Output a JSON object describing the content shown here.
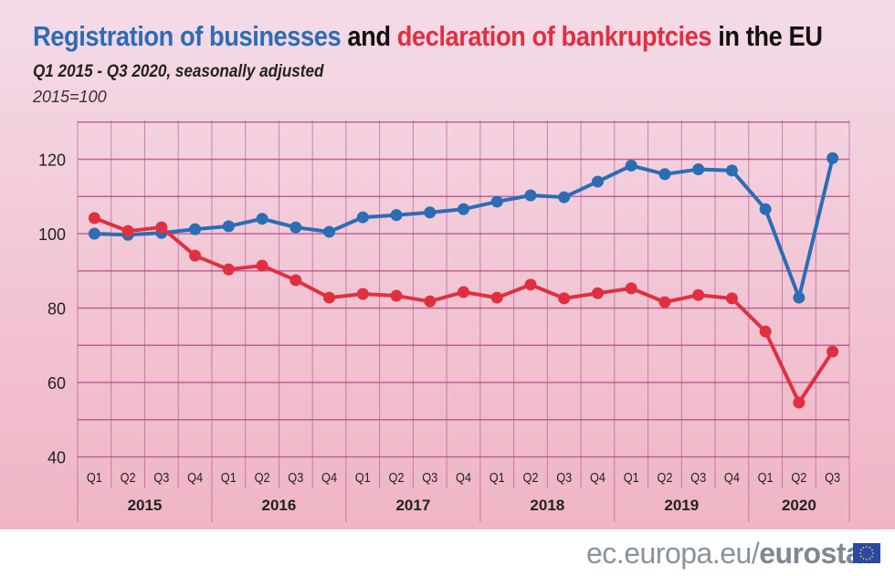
{
  "header": {
    "title_part1": "Registration of businesses",
    "title_part2": " and ",
    "title_part3": "declaration of bankruptcies",
    "title_part4": " in the EU",
    "subtitle": "Q1 2015  - Q3 2020, seasonally adjusted",
    "base": "2015=100"
  },
  "footer": {
    "site": "ec.europa.eu/",
    "brand": "eurostat",
    "logo": "eu-flag"
  },
  "colors": {
    "registrations": "#2a6db5",
    "bankruptcies": "#e03040",
    "grid": "#b04a8a"
  },
  "chart_data": {
    "type": "line",
    "title": "Registration of businesses and declaration of bankruptcies in the EU",
    "ylim": [
      40,
      125
    ],
    "yticks": [
      40,
      60,
      80,
      100,
      120
    ],
    "grid": true,
    "quarters": [
      "Q1",
      "Q2",
      "Q3",
      "Q4",
      "Q1",
      "Q2",
      "Q3",
      "Q4",
      "Q1",
      "Q2",
      "Q3",
      "Q4",
      "Q1",
      "Q2",
      "Q3",
      "Q4",
      "Q1",
      "Q2",
      "Q3",
      "Q4",
      "Q1",
      "Q2",
      "Q3"
    ],
    "years": [
      "2015",
      "2016",
      "2017",
      "2018",
      "2019",
      "2020"
    ],
    "series": [
      {
        "name": "Registration of businesses",
        "color": "#2a6db5",
        "values": [
          100,
          99.7,
          100.2,
          101.2,
          102,
          104,
          101.7,
          100.5,
          104.4,
          105,
          105.7,
          106.6,
          108.6,
          110.3,
          109.8,
          114,
          118.3,
          116,
          117.3,
          117,
          106.6,
          82.8,
          120.3
        ]
      },
      {
        "name": "declaration of bankruptcies",
        "color": "#e03040",
        "values": [
          104.2,
          100.7,
          101.7,
          94.1,
          90.4,
          91.4,
          87.5,
          82.8,
          83.8,
          83.3,
          81.8,
          84.3,
          82.8,
          86.3,
          82.6,
          84,
          85.3,
          81.6,
          83.5,
          82.6,
          73.7,
          54.6,
          68.3
        ]
      }
    ]
  }
}
